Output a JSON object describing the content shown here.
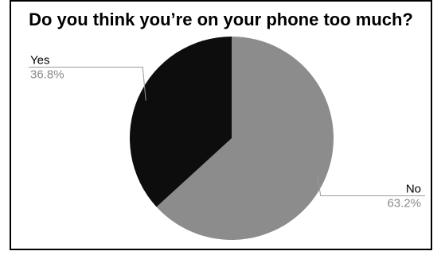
{
  "chart_data": {
    "type": "pie",
    "title": "Do you think you’re on your phone too much?",
    "slices": [
      {
        "label": "No",
        "value": 63.2,
        "percent_label": "63.2%",
        "color": "#8c8c8c"
      },
      {
        "label": "Yes",
        "value": 36.8,
        "percent_label": "36.8%",
        "color": "#0d0d0d"
      }
    ],
    "start_angle_deg": 0,
    "direction": "clockwise",
    "legend": "none"
  }
}
